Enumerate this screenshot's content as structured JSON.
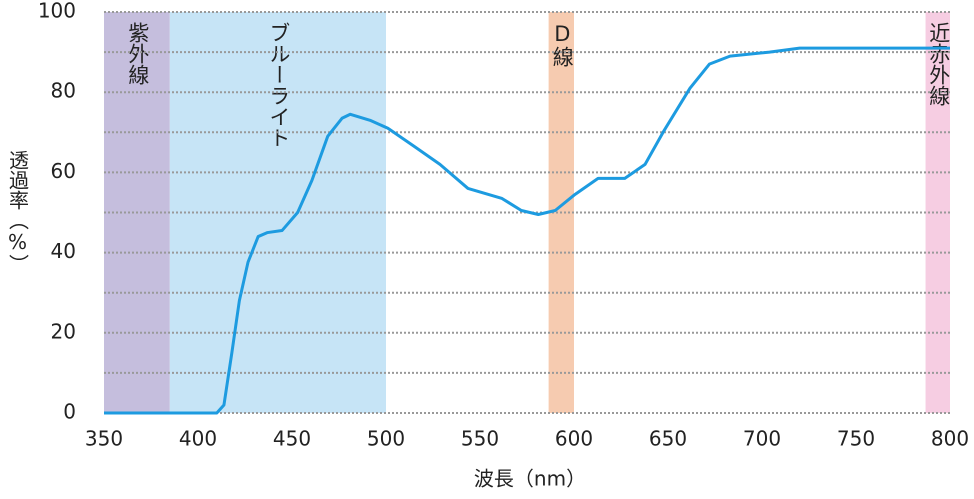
{
  "chart_data": {
    "type": "line",
    "x_label": "波長（nm）",
    "y_label": "透過率（%）",
    "x": [
      350,
      380,
      410,
      413.8,
      418,
      422,
      426.6,
      432,
      437,
      444.7,
      453,
      460.6,
      469,
      476.6,
      481,
      491.5,
      501,
      515,
      528.7,
      543.6,
      561.7,
      572,
      581,
      590,
      600.5,
      612.8,
      627,
      637.8,
      648,
      661.7,
      672,
      683,
      704,
      720,
      747,
      800
    ],
    "series": [
      {
        "name": "透過率",
        "color": "#1d9be0",
        "values": [
          0,
          0,
          0,
          2,
          15,
          28,
          37.6,
          44,
          45,
          45.5,
          50,
          58,
          69,
          73.5,
          74.5,
          73,
          71,
          66.5,
          62,
          56,
          53.5,
          50.5,
          49.5,
          50.5,
          54.5,
          58.5,
          58.5,
          62,
          70.5,
          81,
          87,
          89,
          90,
          91,
          91,
          91
        ]
      }
    ],
    "bands": [
      {
        "label": "紫外線",
        "range": [
          350,
          385
        ],
        "color": "#c5bedd"
      },
      {
        "label": "ブルーライト",
        "range": [
          385,
          500
        ],
        "color": "#c6e4f6"
      },
      {
        "label": "D線",
        "range": [
          586.5,
          600
        ],
        "color": "#f6cbb0"
      },
      {
        "label": "近赤外線",
        "range": [
          787,
          800
        ],
        "color": "#f6cde2"
      }
    ],
    "xlim": [
      350,
      800
    ],
    "ylim": [
      0,
      100
    ],
    "xticks": [
      350,
      400,
      450,
      500,
      550,
      600,
      650,
      700,
      750,
      800
    ],
    "yticks": [
      0,
      20,
      40,
      60,
      80,
      100
    ],
    "minor_yticks": [
      10,
      30,
      50,
      70,
      90
    ],
    "grid": true
  }
}
